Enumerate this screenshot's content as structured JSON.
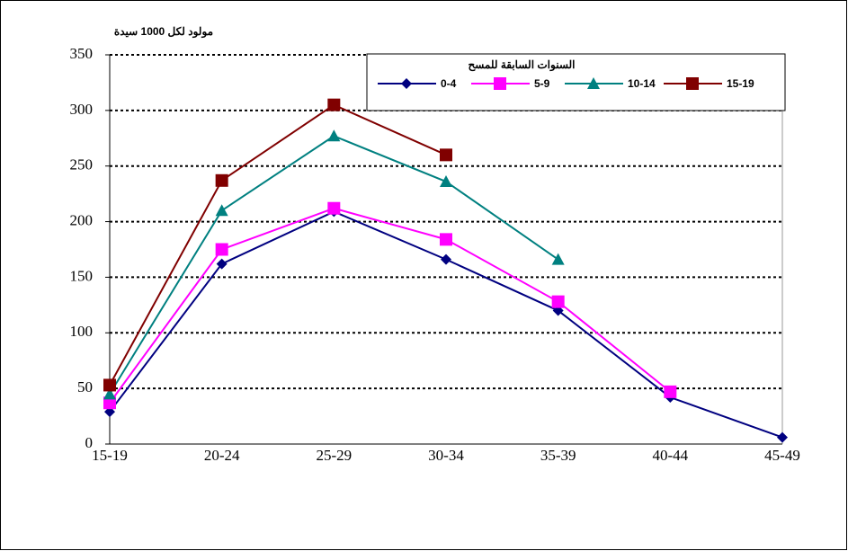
{
  "chart_data": {
    "type": "line",
    "y_label": "مولود لكل 1000 سيدة",
    "legend_title": "السنوات السابقة للمسح",
    "categories": [
      "15-19",
      "20-24",
      "25-29",
      "30-34",
      "35-39",
      "40-44",
      "45-49"
    ],
    "series": [
      {
        "name": "0-4",
        "color": "#000080",
        "marker": "diamond",
        "values": [
          29,
          162,
          209,
          166,
          120,
          42,
          6
        ]
      },
      {
        "name": "5-9",
        "color": "#ff00ff",
        "marker": "square",
        "values": [
          37,
          175,
          212,
          184,
          128,
          47,
          null
        ]
      },
      {
        "name": "10-14",
        "color": "#008080",
        "marker": "triangle",
        "values": [
          45,
          210,
          277,
          236,
          166,
          null,
          null
        ]
      },
      {
        "name": "15-19",
        "color": "#800000",
        "marker": "square",
        "values": [
          53,
          237,
          305,
          260,
          null,
          null,
          null
        ]
      }
    ],
    "ylim": [
      0,
      350
    ],
    "yticks": [
      0,
      50,
      100,
      150,
      200,
      250,
      300,
      350
    ],
    "grid": true,
    "legend": "top-right"
  }
}
